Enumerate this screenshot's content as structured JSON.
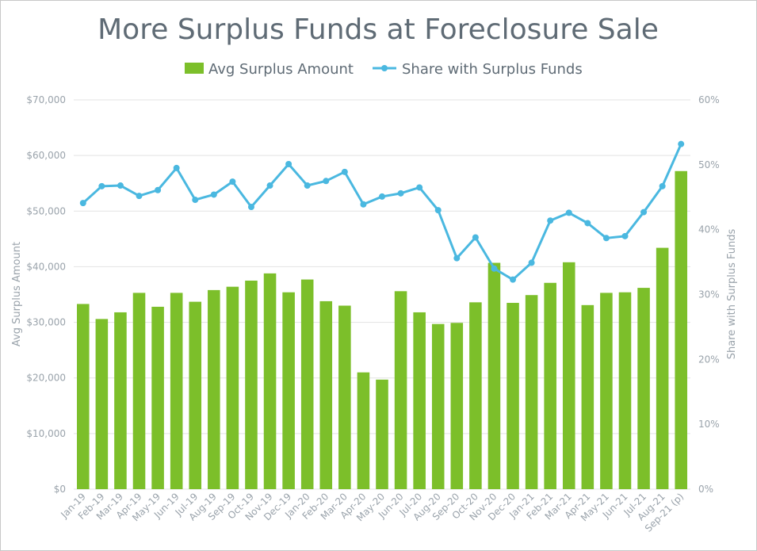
{
  "chart_data": {
    "type": "bar+line",
    "title": "More Surplus Funds at Foreclosure Sale",
    "categories": [
      "Jan-19",
      "Feb-19",
      "Mar-19",
      "Apr-19",
      "May-19",
      "Jun-19",
      "Jul-19",
      "Aug-19",
      "Sep-19",
      "Oct-19",
      "Nov-19",
      "Dec-19",
      "Jan-20",
      "Feb-20",
      "Mar-20",
      "Apr-20",
      "May-20",
      "Jun-20",
      "Jul-20",
      "Aug-20",
      "Sep-20",
      "Oct-20",
      "Nov-20",
      "Dec-20",
      "Jan-21",
      "Feb-21",
      "Mar-21",
      "Apr-21",
      "May-21",
      "Jun-21",
      "Jul-21",
      "Aug-21",
      "Sep-21 (p)"
    ],
    "series": [
      {
        "name": "Avg Surplus Amount",
        "type": "bar",
        "axis": "left",
        "color": "#7cbf2a",
        "values": [
          33300,
          30600,
          31800,
          35300,
          32800,
          35300,
          33700,
          35800,
          36400,
          37500,
          38800,
          35400,
          37700,
          33800,
          33000,
          21000,
          19700,
          35600,
          31800,
          29700,
          29900,
          33600,
          40700,
          33500,
          34900,
          37100,
          40800,
          33100,
          35300,
          35400,
          36200,
          43400,
          57200
        ]
      },
      {
        "name": "Share with Surplus Funds",
        "type": "line",
        "axis": "right",
        "color": "#4ab8e0",
        "values": [
          44.1,
          46.7,
          46.8,
          45.2,
          46.1,
          49.5,
          44.6,
          45.4,
          47.4,
          43.5,
          46.8,
          50.1,
          46.8,
          47.5,
          48.9,
          43.9,
          45.1,
          45.6,
          46.5,
          43.0,
          35.6,
          38.8,
          34.0,
          32.3,
          34.9,
          41.4,
          42.6,
          41.0,
          38.7,
          39.0,
          42.7,
          46.7,
          53.2
        ]
      }
    ],
    "y_left": {
      "label": "Avg Surplus Amount",
      "lim": [
        0,
        70000
      ],
      "step": 10000,
      "ticks": [
        "$0",
        "$10,000",
        "$20,000",
        "$30,000",
        "$40,000",
        "$50,000",
        "$60,000",
        "$70,000"
      ]
    },
    "y_right": {
      "label": "Share with Surplus Funds",
      "lim": [
        0,
        60
      ],
      "step": 10,
      "ticks": [
        "0%",
        "10%",
        "20%",
        "30%",
        "40%",
        "50%",
        "60%"
      ]
    },
    "grid": true,
    "legend_position": "top-center"
  },
  "colors": {
    "gridline": "#e3e3e3",
    "text": "#5f6b75",
    "axis_text": "#9aa3ab"
  }
}
